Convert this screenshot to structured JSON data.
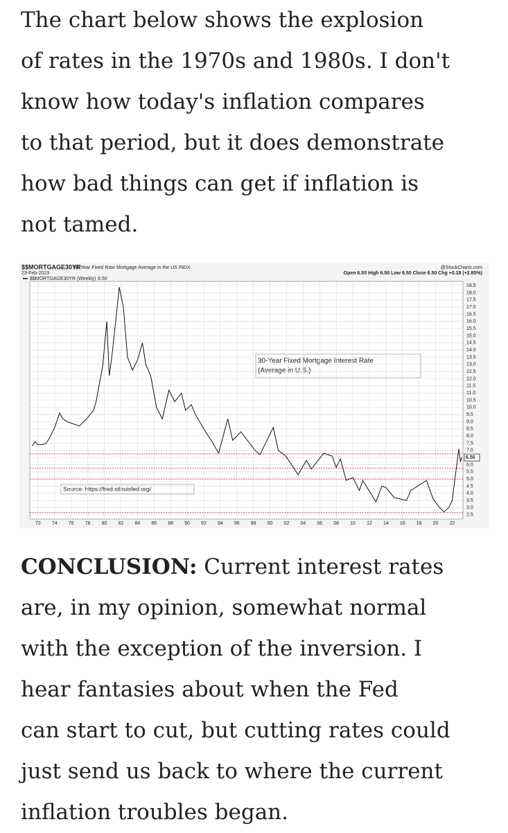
{
  "intro_lines": [
    "The chart below shows the explosion",
    "of rates in the 1970s and 1980s. I don't",
    "know how today's inflation compares",
    "to that period, but it does demonstrate",
    "how bad things can get if inflation is",
    "not tamed."
  ],
  "chart_data": {
    "type": "line",
    "title": "$$MORTGAGE30YR",
    "subtitle": "30-Year Fixed Rate Mortgage Average in the US INDX",
    "date": "23-Feb-2023",
    "credit": "@StockCharts.com",
    "quote": "Open 6.50 High 6.50 Low 6.50 Close 6.50 Chg +0.18 (+2.85%)",
    "legend_value": "6.50",
    "last_value_label": "6.50",
    "annotation": [
      "30-Year Fixed Mortgage Interest Rate",
      "(Average in U.S.)"
    ],
    "source": "Source: https://fred.stlouisfed.org/",
    "grid": true,
    "y_axis_side": "right",
    "reference_lines": [
      6.75,
      5.75,
      5.0,
      2.65
    ],
    "reference_color": "#e02020",
    "xlim": [
      1971,
      2023.3
    ],
    "ylim": [
      2.2,
      18.8
    ],
    "xticks": [
      {
        "value": 1972,
        "label": "72"
      },
      {
        "value": 1974,
        "label": "74"
      },
      {
        "value": 1976,
        "label": "76"
      },
      {
        "value": 1978,
        "label": "78"
      },
      {
        "value": 1980,
        "label": "80"
      },
      {
        "value": 1982,
        "label": "82"
      },
      {
        "value": 1984,
        "label": "84"
      },
      {
        "value": 1986,
        "label": "86"
      },
      {
        "value": 1988,
        "label": "88"
      },
      {
        "value": 1990,
        "label": "90"
      },
      {
        "value": 1992,
        "label": "92"
      },
      {
        "value": 1994,
        "label": "94"
      },
      {
        "value": 1996,
        "label": "96"
      },
      {
        "value": 1998,
        "label": "98"
      },
      {
        "value": 2000,
        "label": "00"
      },
      {
        "value": 2002,
        "label": "02"
      },
      {
        "value": 2004,
        "label": "04"
      },
      {
        "value": 2006,
        "label": "06"
      },
      {
        "value": 2008,
        "label": "08"
      },
      {
        "value": 2010,
        "label": "10"
      },
      {
        "value": 2012,
        "label": "12"
      },
      {
        "value": 2014,
        "label": "14"
      },
      {
        "value": 2016,
        "label": "16"
      },
      {
        "value": 2018,
        "label": "18"
      },
      {
        "value": 2020,
        "label": "20"
      },
      {
        "value": 2022,
        "label": "22"
      }
    ],
    "yticks": [
      2.5,
      {
        "value": 3,
        "label": "3.0"
      },
      3.5,
      {
        "value": 4,
        "label": "4.0"
      },
      4.5,
      {
        "value": 5,
        "label": "5.0"
      },
      5.5,
      {
        "value": 6,
        "label": "6.0"
      },
      6.5,
      {
        "value": 7,
        "label": "7.0"
      },
      7.5,
      {
        "value": 8,
        "label": "8.0"
      },
      8.5,
      {
        "value": 9,
        "label": "9.0"
      },
      9.5,
      {
        "value": 10,
        "label": "10.0"
      },
      10.5,
      {
        "value": 11,
        "label": "11.0"
      },
      11.5,
      {
        "value": 12,
        "label": "12.0"
      },
      12.5,
      {
        "value": 13,
        "label": "13.0"
      },
      13.5,
      {
        "value": 14,
        "label": "14.0"
      },
      14.5,
      {
        "value": 15,
        "label": "15.0"
      },
      15.5,
      {
        "value": 16,
        "label": "16.0"
      },
      16.5,
      {
        "value": 17,
        "label": "17.0"
      },
      17.5,
      {
        "value": 18,
        "label": "18.0"
      },
      18.5
    ],
    "x": [
      1971.3,
      1971.6,
      1972,
      1972.5,
      1973,
      1973.5,
      1974,
      1974.6,
      1975,
      1975.5,
      1976,
      1977,
      1978,
      1978.7,
      1979,
      1979.8,
      1980.3,
      1980.6,
      1981,
      1981.8,
      1982.3,
      1982.8,
      1983.4,
      1984,
      1984.6,
      1985,
      1985.6,
      1986.3,
      1987,
      1987.8,
      1988.5,
      1989.3,
      1989.8,
      1990.5,
      1991,
      1992,
      1993,
      1993.8,
      1994.9,
      1995.5,
      1996.5,
      1997,
      1998.2,
      1998.8,
      2000.4,
      2001,
      2001.9,
      2003.4,
      2004.4,
      2005,
      2006.5,
      2007.5,
      2008,
      2008.5,
      2009.2,
      2010,
      2010.8,
      2011.2,
      2012.8,
      2013.5,
      2014,
      2015,
      2016.5,
      2017,
      2018.9,
      2019.7,
      2020.5,
      2021,
      2021.6,
      2022,
      2022.4,
      2022.8,
      2023,
      2023.15
    ],
    "series": [
      {
        "name": "$$MORTGAGE30YR (Weekly)",
        "color": "#111111",
        "values": [
          7.3,
          7.6,
          7.4,
          7.4,
          7.5,
          8.0,
          8.6,
          9.6,
          9.2,
          9.0,
          8.9,
          8.7,
          9.3,
          9.8,
          10.4,
          12.9,
          16.0,
          12.2,
          14.0,
          18.4,
          17.0,
          13.5,
          12.6,
          13.3,
          14.5,
          13.0,
          12.2,
          10.0,
          9.2,
          11.2,
          10.4,
          11.0,
          9.8,
          10.2,
          9.5,
          8.5,
          7.6,
          6.8,
          9.2,
          7.7,
          8.3,
          7.9,
          7.0,
          6.7,
          8.6,
          7.0,
          6.6,
          5.3,
          6.3,
          5.7,
          6.8,
          6.6,
          5.8,
          6.4,
          4.9,
          5.1,
          4.2,
          4.9,
          3.4,
          4.5,
          4.4,
          3.7,
          3.5,
          4.2,
          4.9,
          3.6,
          3.0,
          2.7,
          3.0,
          3.5,
          5.3,
          7.1,
          6.2,
          6.5
        ]
      }
    ]
  },
  "conclusion": {
    "lead": "CONCLUSION:",
    "lines": [
      " Current interest rates",
      "are, in my opinion, somewhat normal",
      "with the exception of the inversion. I",
      "hear fantasies about when the Fed",
      "can start to cut, but cutting rates could",
      "just send us back to where the current",
      "inflation troubles began."
    ]
  }
}
